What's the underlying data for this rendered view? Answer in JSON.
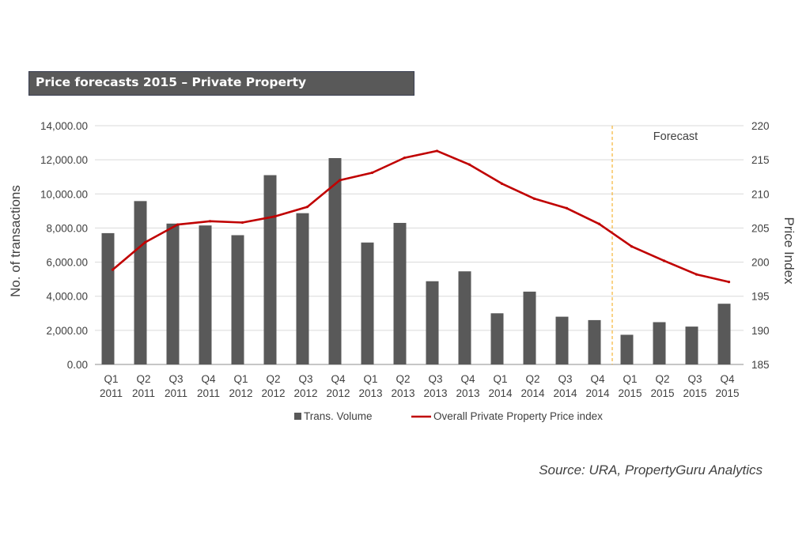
{
  "chart_data": {
    "type": "bar+line",
    "title": "Price forecasts 2015 – Private Property",
    "categories": [
      [
        "Q1",
        "2011"
      ],
      [
        "Q2",
        "2011"
      ],
      [
        "Q3",
        "2011"
      ],
      [
        "Q4",
        "2011"
      ],
      [
        "Q1",
        "2012"
      ],
      [
        "Q2",
        "2012"
      ],
      [
        "Q3",
        "2012"
      ],
      [
        "Q4",
        "2012"
      ],
      [
        "Q1",
        "2013"
      ],
      [
        "Q2",
        "2013"
      ],
      [
        "Q3",
        "2013"
      ],
      [
        "Q4",
        "2013"
      ],
      [
        "Q1",
        "2014"
      ],
      [
        "Q2",
        "2014"
      ],
      [
        "Q3",
        "2014"
      ],
      [
        "Q4",
        "2014"
      ],
      [
        "Q1",
        "2015"
      ],
      [
        "Q2",
        "2015"
      ],
      [
        "Q3",
        "2015"
      ],
      [
        "Q4",
        "2015"
      ]
    ],
    "series": [
      {
        "name": "Trans. Volume",
        "kind": "bar",
        "axis": "left",
        "color": "#595959",
        "values": [
          7700,
          9580,
          8260,
          8150,
          7580,
          11100,
          8870,
          12100,
          7150,
          8300,
          4880,
          5460,
          3000,
          4270,
          2800,
          2600,
          1740,
          2480,
          2220,
          3560
        ]
      },
      {
        "name": "Overall Private Property Price index",
        "kind": "line",
        "axis": "right",
        "color": "#c00000",
        "values": [
          198.9,
          202.9,
          205.5,
          206.0,
          205.8,
          206.7,
          208.1,
          212.0,
          213.1,
          215.3,
          216.3,
          214.3,
          211.5,
          209.3,
          207.9,
          205.6,
          202.3,
          200.2,
          198.2,
          197.1
        ]
      }
    ],
    "ylabel": "No. of transactions",
    "y2label": "Price Index",
    "ylim": [
      0,
      14000
    ],
    "y2lim": [
      185,
      220
    ],
    "yticks": [
      "0.00",
      "2,000.00",
      "4,000.00",
      "6,000.00",
      "8,000.00",
      "10,000.00",
      "12,000.00",
      "14,000.00"
    ],
    "y2ticks": [
      "185",
      "190",
      "195",
      "200",
      "205",
      "210",
      "215",
      "220"
    ],
    "grid": true,
    "legend": "bottom",
    "forecast_label": "Forecast",
    "forecast_start_index": 16,
    "source": "Source: URA, PropertyGuru Analytics"
  }
}
